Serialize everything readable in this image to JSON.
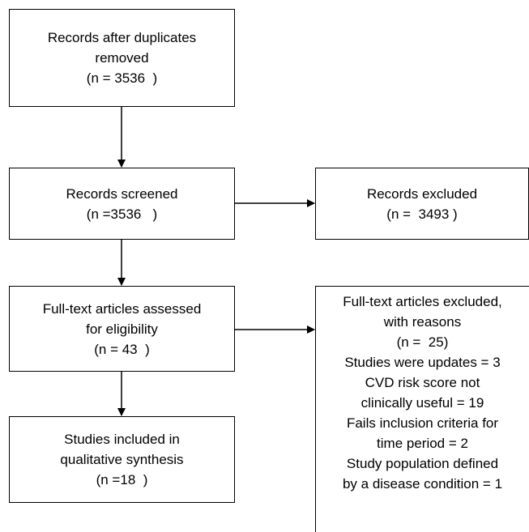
{
  "boxes": {
    "duplicates_removed": {
      "lines": [
        "Records after duplicates",
        "removed",
        "(n = 3536  )"
      ]
    },
    "screened": {
      "lines": [
        "Records screened",
        "(n =3536   )"
      ]
    },
    "excluded": {
      "lines": [
        "Records excluded",
        "(n =  3493 )"
      ]
    },
    "fulltext_assessed": {
      "lines": [
        "Full-text articles assessed",
        "for eligibility",
        "(n = 43  )"
      ]
    },
    "fulltext_excluded": {
      "lines": [
        "Full-text articles excluded,",
        "with reasons",
        "(n =  25)",
        "Studies were updates = 3",
        "CVD risk score not",
        "clinically useful = 19",
        "Fails inclusion criteria for",
        "time period = 2",
        "Study population defined",
        "by a disease condition = 1"
      ]
    },
    "included": {
      "lines": [
        "Studies included in",
        "qualitative synthesis",
        "(n =18  )"
      ]
    }
  }
}
